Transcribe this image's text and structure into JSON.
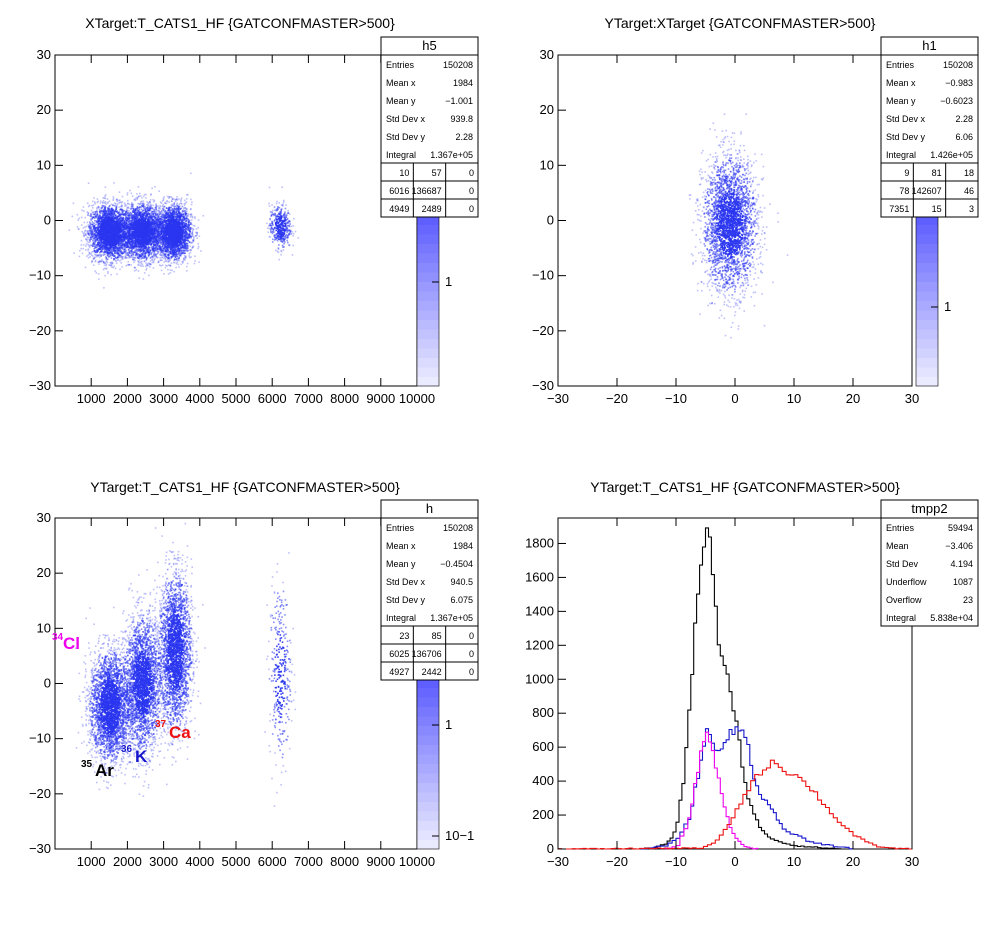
{
  "panels": [
    {
      "title": "XTarget:T_CATS1_HF {GATCONFMASTER>500}",
      "stats": {
        "name": "h5",
        "rows": [
          [
            "Entries",
            "150208"
          ],
          [
            "Mean x",
            "1984"
          ],
          [
            "Mean y",
            "−1.001"
          ],
          [
            "Std Dev x",
            "939.8"
          ],
          [
            "Std Dev y",
            "2.28"
          ],
          [
            "Integral",
            "1.367e+05"
          ]
        ],
        "grid": [
          [
            "10",
            "57",
            "0"
          ],
          [
            "6016",
            "136687",
            "0"
          ],
          [
            "4949",
            "2489",
            "0"
          ]
        ]
      },
      "palette_label": "1"
    },
    {
      "title": "YTarget:XTarget {GATCONFMASTER>500}",
      "stats": {
        "name": "h1",
        "rows": [
          [
            "Entries",
            "150208"
          ],
          [
            "Mean x",
            "−0.983"
          ],
          [
            "Mean y",
            "−0.6023"
          ],
          [
            "Std Dev x",
            "2.28"
          ],
          [
            "Std Dev y",
            "6.06"
          ],
          [
            "Integral",
            "1.426e+05"
          ]
        ],
        "grid": [
          [
            "9",
            "81",
            "18"
          ],
          [
            "78",
            "142607",
            "46"
          ],
          [
            "7351",
            "15",
            "3"
          ]
        ]
      },
      "palette_label": "1"
    },
    {
      "title": "YTarget:T_CATS1_HF {GATCONFMASTER>500}",
      "stats": {
        "name": "h",
        "rows": [
          [
            "Entries",
            "150208"
          ],
          [
            "Mean x",
            "1984"
          ],
          [
            "Mean y",
            "−0.4504"
          ],
          [
            "Std Dev x",
            "940.5"
          ],
          [
            "Std Dev y",
            "6.075"
          ],
          [
            "Integral",
            "1.367e+05"
          ]
        ],
        "grid": [
          [
            "23",
            "85",
            "0"
          ],
          [
            "6025",
            "136706",
            "0"
          ],
          [
            "4927",
            "2442",
            "0"
          ]
        ]
      },
      "palette_labels": [
        "1",
        "10−1"
      ],
      "annotations": [
        {
          "mass": "34",
          "element": "Cl",
          "color": "#ee00ee"
        },
        {
          "mass": "35",
          "element": "Ar",
          "color": "#000000"
        },
        {
          "mass": "36",
          "element": "K",
          "color": "#1515cc"
        },
        {
          "mass": "37",
          "element": "Ca",
          "color": "#ee1111"
        }
      ]
    },
    {
      "title": "YTarget:T_CATS1_HF {GATCONFMASTER>500}",
      "stats": {
        "name": "tmpp2",
        "rows": [
          [
            "Entries",
            "59494"
          ],
          [
            "Mean",
            "−3.406"
          ],
          [
            "Std Dev",
            "4.194"
          ],
          [
            "Underflow",
            "1087"
          ],
          [
            "Overflow",
            "23"
          ],
          [
            "Integral",
            "5.838e+04"
          ]
        ]
      }
    }
  ],
  "chart_data": [
    {
      "type": "heatmap",
      "title": "XTarget:T_CATS1_HF {GATCONFMASTER>500}",
      "xlim": [
        0,
        10000
      ],
      "ylim": [
        -30,
        30
      ],
      "xticks": [
        1000,
        2000,
        3000,
        4000,
        5000,
        6000,
        7000,
        8000,
        9000,
        10000
      ],
      "yticks": [
        -30,
        -20,
        -10,
        0,
        10,
        20,
        30
      ],
      "clusters": [
        {
          "x": 1500,
          "y": -2,
          "sx": 300,
          "sy": 2.5,
          "weight": 1.0
        },
        {
          "x": 2400,
          "y": -2,
          "sx": 280,
          "sy": 2.5,
          "weight": 0.9
        },
        {
          "x": 3250,
          "y": -2,
          "sx": 250,
          "sy": 2.5,
          "weight": 0.9
        },
        {
          "x": 6200,
          "y": -1,
          "sx": 150,
          "sy": 2.0,
          "weight": 0.15
        }
      ]
    },
    {
      "type": "heatmap",
      "title": "YTarget:XTarget {GATCONFMASTER>500}",
      "xlim": [
        -30,
        30
      ],
      "ylim": [
        -30,
        30
      ],
      "xticks": [
        -30,
        -20,
        -10,
        0,
        10,
        20,
        30
      ],
      "yticks": [
        -30,
        -20,
        -10,
        0,
        10,
        20,
        30
      ],
      "clusters": [
        {
          "x": -0.98,
          "y": -0.6,
          "sx": 2.28,
          "sy": 6.06,
          "weight": 1.0
        }
      ]
    },
    {
      "type": "heatmap",
      "title": "YTarget:T_CATS1_HF {GATCONFMASTER>500}",
      "xlim": [
        0,
        10000
      ],
      "ylim": [
        -30,
        30
      ],
      "xticks": [
        1000,
        2000,
        3000,
        4000,
        5000,
        6000,
        7000,
        8000,
        9000,
        10000
      ],
      "yticks": [
        -30,
        -20,
        -10,
        0,
        10,
        20,
        30
      ],
      "clusters": [
        {
          "x": 1500,
          "y": -4,
          "sx": 280,
          "sy": 5,
          "weight": 1.0
        },
        {
          "x": 2400,
          "y": 0,
          "sx": 260,
          "sy": 6,
          "weight": 0.9
        },
        {
          "x": 3300,
          "y": 6,
          "sx": 230,
          "sy": 7,
          "weight": 0.9
        },
        {
          "x": 6200,
          "y": 2,
          "sx": 150,
          "sy": 8,
          "weight": 0.12
        }
      ]
    },
    {
      "type": "line",
      "title": "YTarget:T_CATS1_HF {GATCONFMASTER>500}",
      "xlim": [
        -30,
        30
      ],
      "ylim": [
        0,
        1950
      ],
      "xticks": [
        -30,
        -20,
        -10,
        0,
        10,
        20,
        30
      ],
      "yticks": [
        0,
        200,
        400,
        600,
        800,
        1000,
        1200,
        1400,
        1600,
        1800
      ],
      "series": [
        {
          "color": "#000000",
          "x": [
            -16,
            -14,
            -12,
            -11,
            -10,
            -9,
            -8,
            -7,
            -6,
            -5,
            -4.5,
            -4,
            -3,
            -2,
            -1,
            0,
            1,
            2,
            3,
            4,
            5,
            6,
            8,
            10,
            14,
            18
          ],
          "y": [
            0,
            8,
            30,
            60,
            150,
            400,
            800,
            1300,
            1700,
            1880,
            1860,
            1600,
            1200,
            1050,
            950,
            750,
            500,
            300,
            200,
            130,
            90,
            60,
            35,
            20,
            8,
            0
          ]
        },
        {
          "color": "#1515cc",
          "x": [
            -16,
            -12,
            -10,
            -8,
            -7,
            -6,
            -5,
            -4,
            -3,
            -2,
            -1,
            0,
            1,
            2,
            3,
            4,
            5,
            6,
            7,
            8,
            10,
            12,
            14,
            16,
            18,
            20
          ],
          "y": [
            0,
            20,
            60,
            180,
            350,
            520,
            690,
            630,
            560,
            610,
            690,
            720,
            720,
            600,
            430,
            310,
            280,
            240,
            180,
            110,
            80,
            50,
            30,
            20,
            10,
            0
          ]
        },
        {
          "color": "#ee00ee",
          "x": [
            -12,
            -10,
            -8,
            -7,
            -6,
            -5,
            -4,
            -3,
            -2,
            -1,
            0,
            1,
            2,
            3,
            4
          ],
          "y": [
            0,
            20,
            180,
            370,
            560,
            690,
            600,
            400,
            250,
            130,
            60,
            25,
            10,
            4,
            0
          ]
        },
        {
          "color": "#ee1111",
          "x": [
            -30,
            -6,
            -4,
            -2,
            0,
            2,
            4,
            6,
            8,
            10,
            12,
            14,
            16,
            18,
            20,
            22,
            24,
            26,
            30
          ],
          "y": [
            0,
            5,
            30,
            110,
            230,
            360,
            450,
            520,
            470,
            430,
            380,
            300,
            210,
            140,
            80,
            40,
            15,
            5,
            0
          ]
        }
      ]
    }
  ]
}
